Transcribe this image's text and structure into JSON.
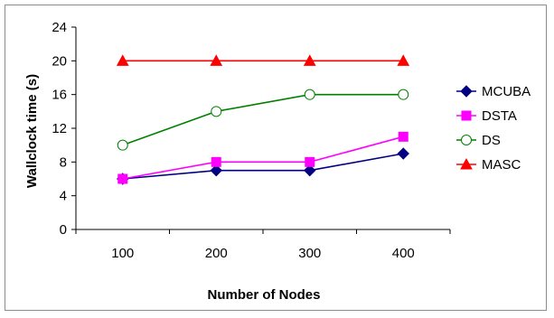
{
  "chart_data": {
    "type": "line",
    "title": "",
    "xlabel": "Number of Nodes",
    "ylabel": "Wallclock time (s)",
    "categories": [
      "100",
      "200",
      "300",
      "400"
    ],
    "ylim": [
      0,
      24
    ],
    "yticks": [
      "0",
      "4",
      "8",
      "12",
      "16",
      "20",
      "24"
    ],
    "grid": false,
    "legend_position": "right",
    "series": [
      {
        "name": "MCUBA",
        "values": [
          6,
          7,
          7,
          9
        ],
        "color": "#000080",
        "marker": "diamond"
      },
      {
        "name": "DSTA",
        "values": [
          6,
          8,
          8,
          11
        ],
        "color": "#ff00ff",
        "marker": "square"
      },
      {
        "name": "DS",
        "values": [
          10,
          14,
          16,
          16
        ],
        "color": "#008000",
        "marker": "circle-open"
      },
      {
        "name": "MASC",
        "values": [
          20,
          20,
          20,
          20
        ],
        "color": "#ff0000",
        "marker": "triangle"
      }
    ]
  }
}
